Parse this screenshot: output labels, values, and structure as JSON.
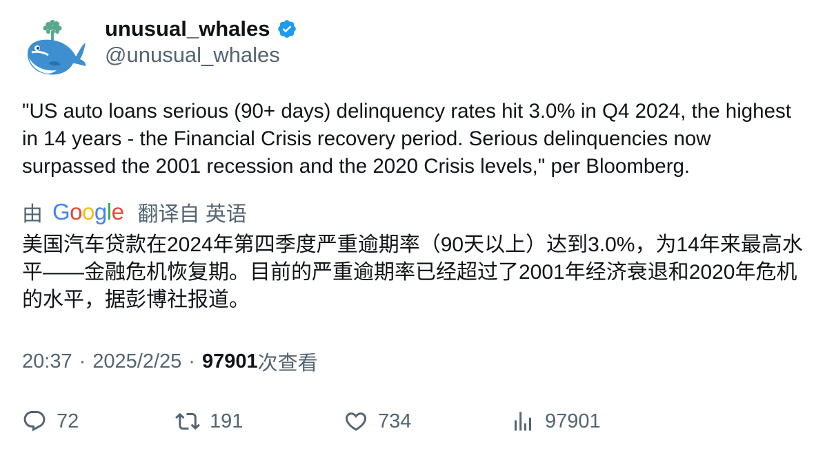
{
  "user": {
    "display_name": "unusual_whales",
    "handle": "@unusual_whales",
    "verified": true,
    "avatar_icon": "whale-icon"
  },
  "tweet": {
    "text": "\"US auto loans serious (90+ days) delinquency rates hit 3.0% in Q4 2024, the highest in 14 years - the Financial Crisis recovery period. Serious delinquencies now surpassed the 2001 recession and the 2020 Crisis levels,\" per Bloomberg."
  },
  "translation": {
    "prefix": "由",
    "provider": "Google",
    "suffix": "翻译自 英语",
    "text": "美国汽车贷款在2024年第四季度严重逾期率（90天以上）达到3.0%，为14年来最高水平——金融危机恢复期。目前的严重逾期率已经超过了2001年经济衰退和2020年危机的水平，据彭博社报道。"
  },
  "meta": {
    "time": "20:37",
    "separator": "·",
    "date": "2025/2/25",
    "views_count": "97901",
    "views_label": "次查看"
  },
  "actions": {
    "replies": "72",
    "retweets": "191",
    "likes": "734",
    "views": "97901"
  },
  "colors": {
    "text_primary": "#0f1419",
    "text_secondary": "#536471",
    "verified_blue": "#1d9bf0",
    "google_blue": "#4285F4",
    "google_red": "#EA4335",
    "google_yellow": "#FBBC05",
    "google_green": "#34A853"
  }
}
